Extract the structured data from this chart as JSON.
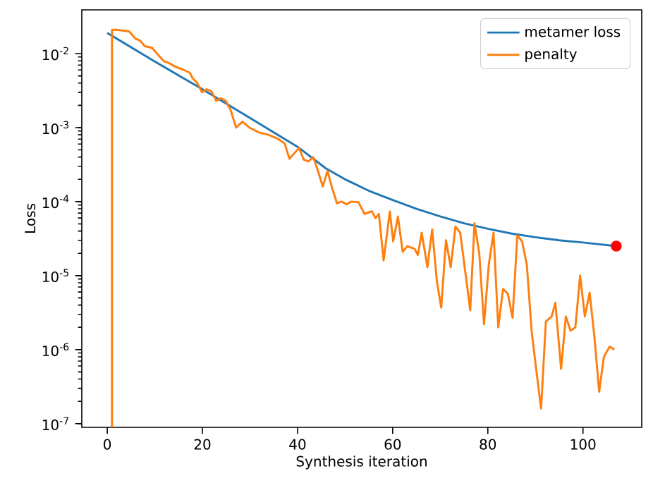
{
  "chart_data": {
    "type": "line",
    "xlabel": "Synthesis iteration",
    "ylabel": "Loss",
    "log": "y",
    "legend": "top right",
    "xlim": [
      -5.35,
      112.35
    ],
    "ylim": [
      8.9e-08,
      0.039
    ],
    "xticks": [
      0,
      20,
      40,
      60,
      80,
      100
    ],
    "yticks": [
      {
        "value": 1e-07,
        "label": "10$^{-7}$"
      },
      {
        "value": 1e-06,
        "label": "10$^{-6}$"
      },
      {
        "value": 1e-05,
        "label": "10$^{-5}$"
      },
      {
        "value": 0.0001,
        "label": "10$^{-4}$"
      },
      {
        "value": 0.001,
        "label": "10$^{-3}$"
      },
      {
        "value": 0.01,
        "label": "10$^{-2}$"
      }
    ],
    "series": [
      {
        "name": "metamer loss",
        "color": "#1f77b4",
        "x": [
          0,
          10,
          20,
          30,
          40,
          46,
          50,
          55,
          60,
          65,
          70,
          75,
          80,
          85,
          90,
          95,
          100,
          107
        ],
        "values": [
          0.019,
          0.0078,
          0.0033,
          0.00135,
          0.00055,
          0.00028,
          0.0002,
          0.00014,
          0.000105,
          8e-05,
          6.3e-05,
          5.1e-05,
          4.3e-05,
          3.7e-05,
          3.3e-05,
          3e-05,
          2.8e-05,
          2.5e-05
        ]
      },
      {
        "name": "penalty",
        "color": "#ff7f0e",
        "x": [
          1,
          1,
          2,
          4.6,
          5.9,
          6.9,
          7.9,
          9.4,
          10.4,
          11.9,
          12.9,
          14.4,
          15.9,
          17.4,
          17.9,
          18.9,
          19.4,
          19.9,
          20.9,
          21.9,
          22.9,
          23.9,
          24.9,
          25.9,
          27.1,
          28.4,
          29.9,
          31.9,
          33.9,
          35.8,
          37.3,
          38.3,
          40.3,
          41.3,
          42.3,
          43.3,
          44.3,
          45.3,
          46.3,
          47.3,
          48.3,
          49.3,
          50.3,
          51.3,
          52.8,
          54.1,
          55.6,
          56.4,
          57.1,
          58.1,
          59.4,
          60.1,
          61.1,
          62.1,
          63.1,
          64.6,
          65.3,
          66.1,
          67.3,
          68.3,
          69.3,
          70.2,
          71.2,
          72.2,
          73.2,
          74.2,
          76.3,
          77.2,
          78.2,
          79.2,
          80.2,
          81.2,
          82.2,
          83.2,
          84.2,
          85.2,
          86.2,
          87.2,
          88.2,
          89.2,
          90.2,
          91.2,
          92.2,
          93.4,
          94.2,
          95.4,
          96.4,
          97.4,
          98.4,
          99.4,
          100.4,
          101.4,
          102.4,
          103.4,
          104.4,
          105.6,
          106.6
        ],
        "values": [
          8.9e-08,
          0.021,
          0.021,
          0.02,
          0.016,
          0.015,
          0.0126,
          0.012,
          0.0101,
          0.0079,
          0.0075,
          0.0066,
          0.0061,
          0.0055,
          0.0047,
          0.004,
          0.0035,
          0.003,
          0.0033,
          0.0031,
          0.0023,
          0.0025,
          0.0023,
          0.00175,
          0.001,
          0.0012,
          0.001,
          0.00086,
          0.0008,
          0.00071,
          0.00061,
          0.00038,
          0.00053,
          0.00037,
          0.00035,
          0.0004,
          0.00026,
          0.00016,
          0.00026,
          0.00015,
          9.5e-05,
          0.0001,
          9.2e-05,
          0.0001,
          9.8e-05,
          6.8e-05,
          7.4e-05,
          6e-05,
          6.8e-05,
          1.6e-05,
          7.4e-05,
          2.9e-05,
          6.3e-05,
          2.1e-05,
          2.5e-05,
          2.3e-05,
          1.9e-05,
          3.8e-05,
          1.3e-05,
          4.2e-05,
          8.3e-06,
          3.7e-06,
          3e-05,
          1.3e-05,
          4.6e-05,
          3.8e-05,
          3.4e-06,
          5.1e-05,
          2e-05,
          2.2e-06,
          1.4e-05,
          3.8e-05,
          2e-06,
          6.6e-06,
          5.7e-06,
          2.7e-06,
          3.5e-05,
          2.9e-05,
          1.4e-05,
          1.8e-06,
          5.2e-07,
          1.6e-07,
          2.4e-06,
          2.8e-06,
          4.3e-06,
          5.5e-07,
          2.8e-06,
          1.8e-06,
          2e-06,
          1e-05,
          2.8e-06,
          5.9e-06,
          1.5e-06,
          2.7e-07,
          8e-07,
          1.1e-06,
          1e-06
        ]
      },
      {
        "type": "scatter",
        "color": "#ff0000",
        "x": [
          107
        ],
        "values": [
          2.5e-05
        ]
      }
    ]
  }
}
